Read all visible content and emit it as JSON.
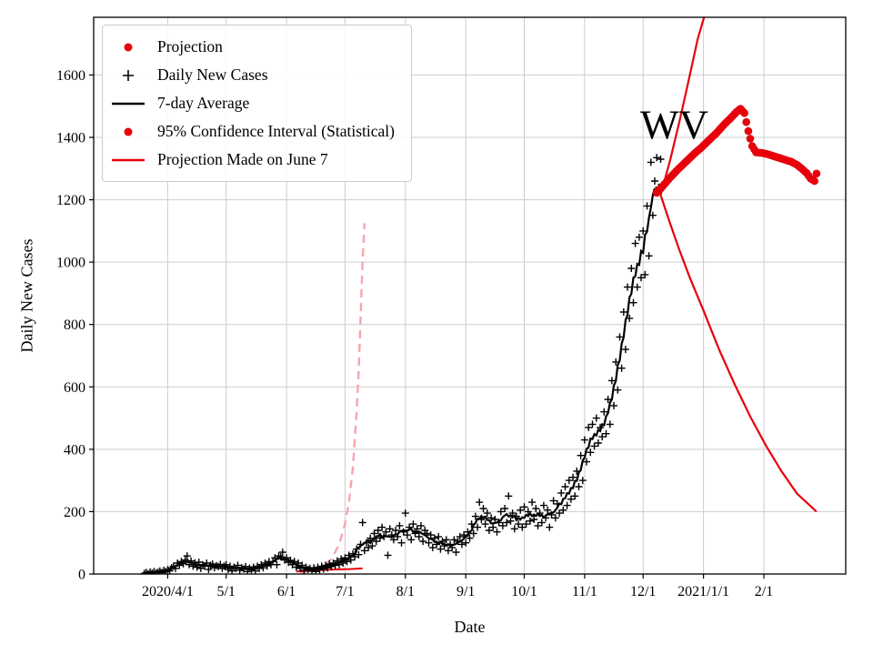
{
  "figure": {
    "background": "#ffffff",
    "xlabel": "Date",
    "ylabel": "Daily New Cases",
    "annotation": {
      "text": "WV",
      "day": 272,
      "value": 1395,
      "font_size": 45
    }
  },
  "colors": {
    "red": "#e8000b",
    "pink": "#f6a5ad",
    "black": "#000000",
    "grid": "#cdcdcd"
  },
  "legend": {
    "items": [
      {
        "label": "Projection",
        "marker": "dot",
        "color": "#e8000b"
      },
      {
        "label": "Daily New Cases",
        "marker": "plus",
        "color": "#000000"
      },
      {
        "label": "7-day Average",
        "marker": "line",
        "color": "#000000"
      },
      {
        "label": "95% Confidence Interval (Statistical)",
        "marker": "dot",
        "color": "#e8000b"
      },
      {
        "label": "Projection Made on June 7",
        "marker": "line",
        "color": "#e8000b"
      }
    ]
  },
  "chart_data": {
    "type": "line",
    "title": "",
    "xlabel": "Date",
    "ylabel": "Daily New Cases",
    "grid": true,
    "x_unit": "days since 2020-03-20",
    "xlim": [
      -26,
      360
    ],
    "ylim": [
      0,
      1785
    ],
    "x_ticks": [
      {
        "day": 12,
        "label": "2020/4/1"
      },
      {
        "day": 42,
        "label": "5/1"
      },
      {
        "day": 73,
        "label": "6/1"
      },
      {
        "day": 103,
        "label": "7/1"
      },
      {
        "day": 134,
        "label": "8/1"
      },
      {
        "day": 165,
        "label": "9/1"
      },
      {
        "day": 195,
        "label": "10/1"
      },
      {
        "day": 226,
        "label": "11/1"
      },
      {
        "day": 256,
        "label": "12/1"
      },
      {
        "day": 287,
        "label": "2021/1/1"
      },
      {
        "day": 318,
        "label": "2/1"
      }
    ],
    "y_ticks": [
      0,
      200,
      400,
      600,
      800,
      1000,
      1200,
      1400,
      1600
    ],
    "daily_new_cases": {
      "start_day": 0,
      "date_of_day0": "2020-03-20",
      "values": [
        2,
        5,
        1,
        7,
        3,
        8,
        4,
        6,
        10,
        5,
        12,
        8,
        14,
        10,
        20,
        25,
        18,
        35,
        28,
        40,
        33,
        45,
        58,
        30,
        42,
        25,
        36,
        22,
        38,
        18,
        30,
        26,
        35,
        15,
        28,
        32,
        20,
        27,
        24,
        31,
        18,
        26,
        30,
        15,
        25,
        10,
        22,
        18,
        28,
        12,
        20,
        16,
        24,
        8,
        19,
        14,
        22,
        10,
        25,
        18,
        30,
        20,
        35,
        26,
        40,
        30,
        40,
        52,
        30,
        58,
        55,
        70,
        45,
        52,
        38,
        44,
        30,
        40,
        22,
        35,
        18,
        28,
        12,
        22,
        15,
        18,
        10,
        20,
        8,
        22,
        14,
        25,
        16,
        28,
        20,
        32,
        24,
        35,
        28,
        42,
        30,
        48,
        35,
        52,
        40,
        60,
        45,
        65,
        55,
        80,
        62,
        95,
        165,
        75,
        100,
        85,
        115,
        90,
        130,
        105,
        140,
        115,
        150,
        120,
        135,
        60,
        145,
        125,
        110,
        140,
        120,
        155,
        100,
        135,
        195,
        125,
        150,
        110,
        160,
        130,
        145,
        120,
        155,
        105,
        140,
        130,
        100,
        125,
        85,
        115,
        95,
        120,
        80,
        105,
        90,
        110,
        75,
        95,
        85,
        110,
        70,
        105,
        120,
        95,
        125,
        100,
        135,
        115,
        160,
        130,
        185,
        150,
        230,
        175,
        210,
        160,
        195,
        140,
        180,
        150,
        175,
        135,
        165,
        200,
        155,
        210,
        165,
        250,
        170,
        195,
        145,
        185,
        160,
        205,
        150,
        215,
        160,
        200,
        170,
        230,
        175,
        210,
        155,
        195,
        165,
        220,
        180,
        205,
        150,
        190,
        235,
        180,
        225,
        195,
        260,
        205,
        280,
        220,
        300,
        240,
        310,
        250,
        330,
        280,
        380,
        300,
        430,
        360,
        470,
        390,
        480,
        410,
        500,
        420,
        470,
        440,
        520,
        450,
        560,
        480,
        620,
        540,
        680,
        590,
        760,
        660,
        840,
        720,
        920,
        820,
        980,
        870,
        1060,
        920,
        1080,
        950,
        1100,
        960,
        1180,
        1020,
        1320,
        1150,
        1260,
        1335,
        1240,
        1330
      ]
    },
    "seven_day_average": "centered 7-day rolling mean of daily_new_cases",
    "projection_anchors": [
      [
        263,
        1222
      ],
      [
        266,
        1243
      ],
      [
        270,
        1272
      ],
      [
        274,
        1298
      ],
      [
        278,
        1322
      ],
      [
        282,
        1346
      ],
      [
        286,
        1368
      ],
      [
        290,
        1392
      ],
      [
        294,
        1416
      ],
      [
        298,
        1444
      ],
      [
        301,
        1462
      ],
      [
        304,
        1482
      ],
      [
        306,
        1492
      ],
      [
        308,
        1478
      ],
      [
        310,
        1420
      ],
      [
        312,
        1372
      ],
      [
        314,
        1352
      ],
      [
        317,
        1350
      ],
      [
        320,
        1346
      ],
      [
        324,
        1338
      ],
      [
        328,
        1330
      ],
      [
        332,
        1322
      ],
      [
        335,
        1312
      ],
      [
        337,
        1302
      ],
      [
        340,
        1285
      ],
      [
        342,
        1268
      ],
      [
        344,
        1260
      ],
      [
        345,
        1284
      ]
    ],
    "ci_upper_anchors": [
      [
        265,
        1215
      ],
      [
        270,
        1330
      ],
      [
        275,
        1460
      ],
      [
        280,
        1600
      ],
      [
        284,
        1715
      ],
      [
        288,
        1800
      ]
    ],
    "ci_lower_anchors": [
      [
        265,
        1215
      ],
      [
        269,
        1140
      ],
      [
        274,
        1050
      ],
      [
        280,
        950
      ],
      [
        287,
        845
      ],
      [
        295,
        720
      ],
      [
        303,
        608
      ],
      [
        311,
        505
      ],
      [
        319,
        412
      ],
      [
        327,
        330
      ],
      [
        335,
        258
      ],
      [
        345,
        200
      ]
    ],
    "june7_projection_anchors": [
      [
        78,
        8
      ],
      [
        85,
        11
      ],
      [
        92,
        13
      ],
      [
        99,
        15
      ],
      [
        106,
        16
      ],
      [
        112,
        18
      ]
    ],
    "june7_ci_anchors": [
      [
        80,
        4
      ],
      [
        86,
        10
      ],
      [
        91,
        22
      ],
      [
        96,
        48
      ],
      [
        100,
        95
      ],
      [
        103,
        160
      ],
      [
        105,
        230
      ],
      [
        107,
        340
      ],
      [
        109,
        520
      ],
      [
        110,
        650
      ],
      [
        111,
        820
      ],
      [
        112,
        1000
      ],
      [
        113,
        1125
      ]
    ]
  }
}
